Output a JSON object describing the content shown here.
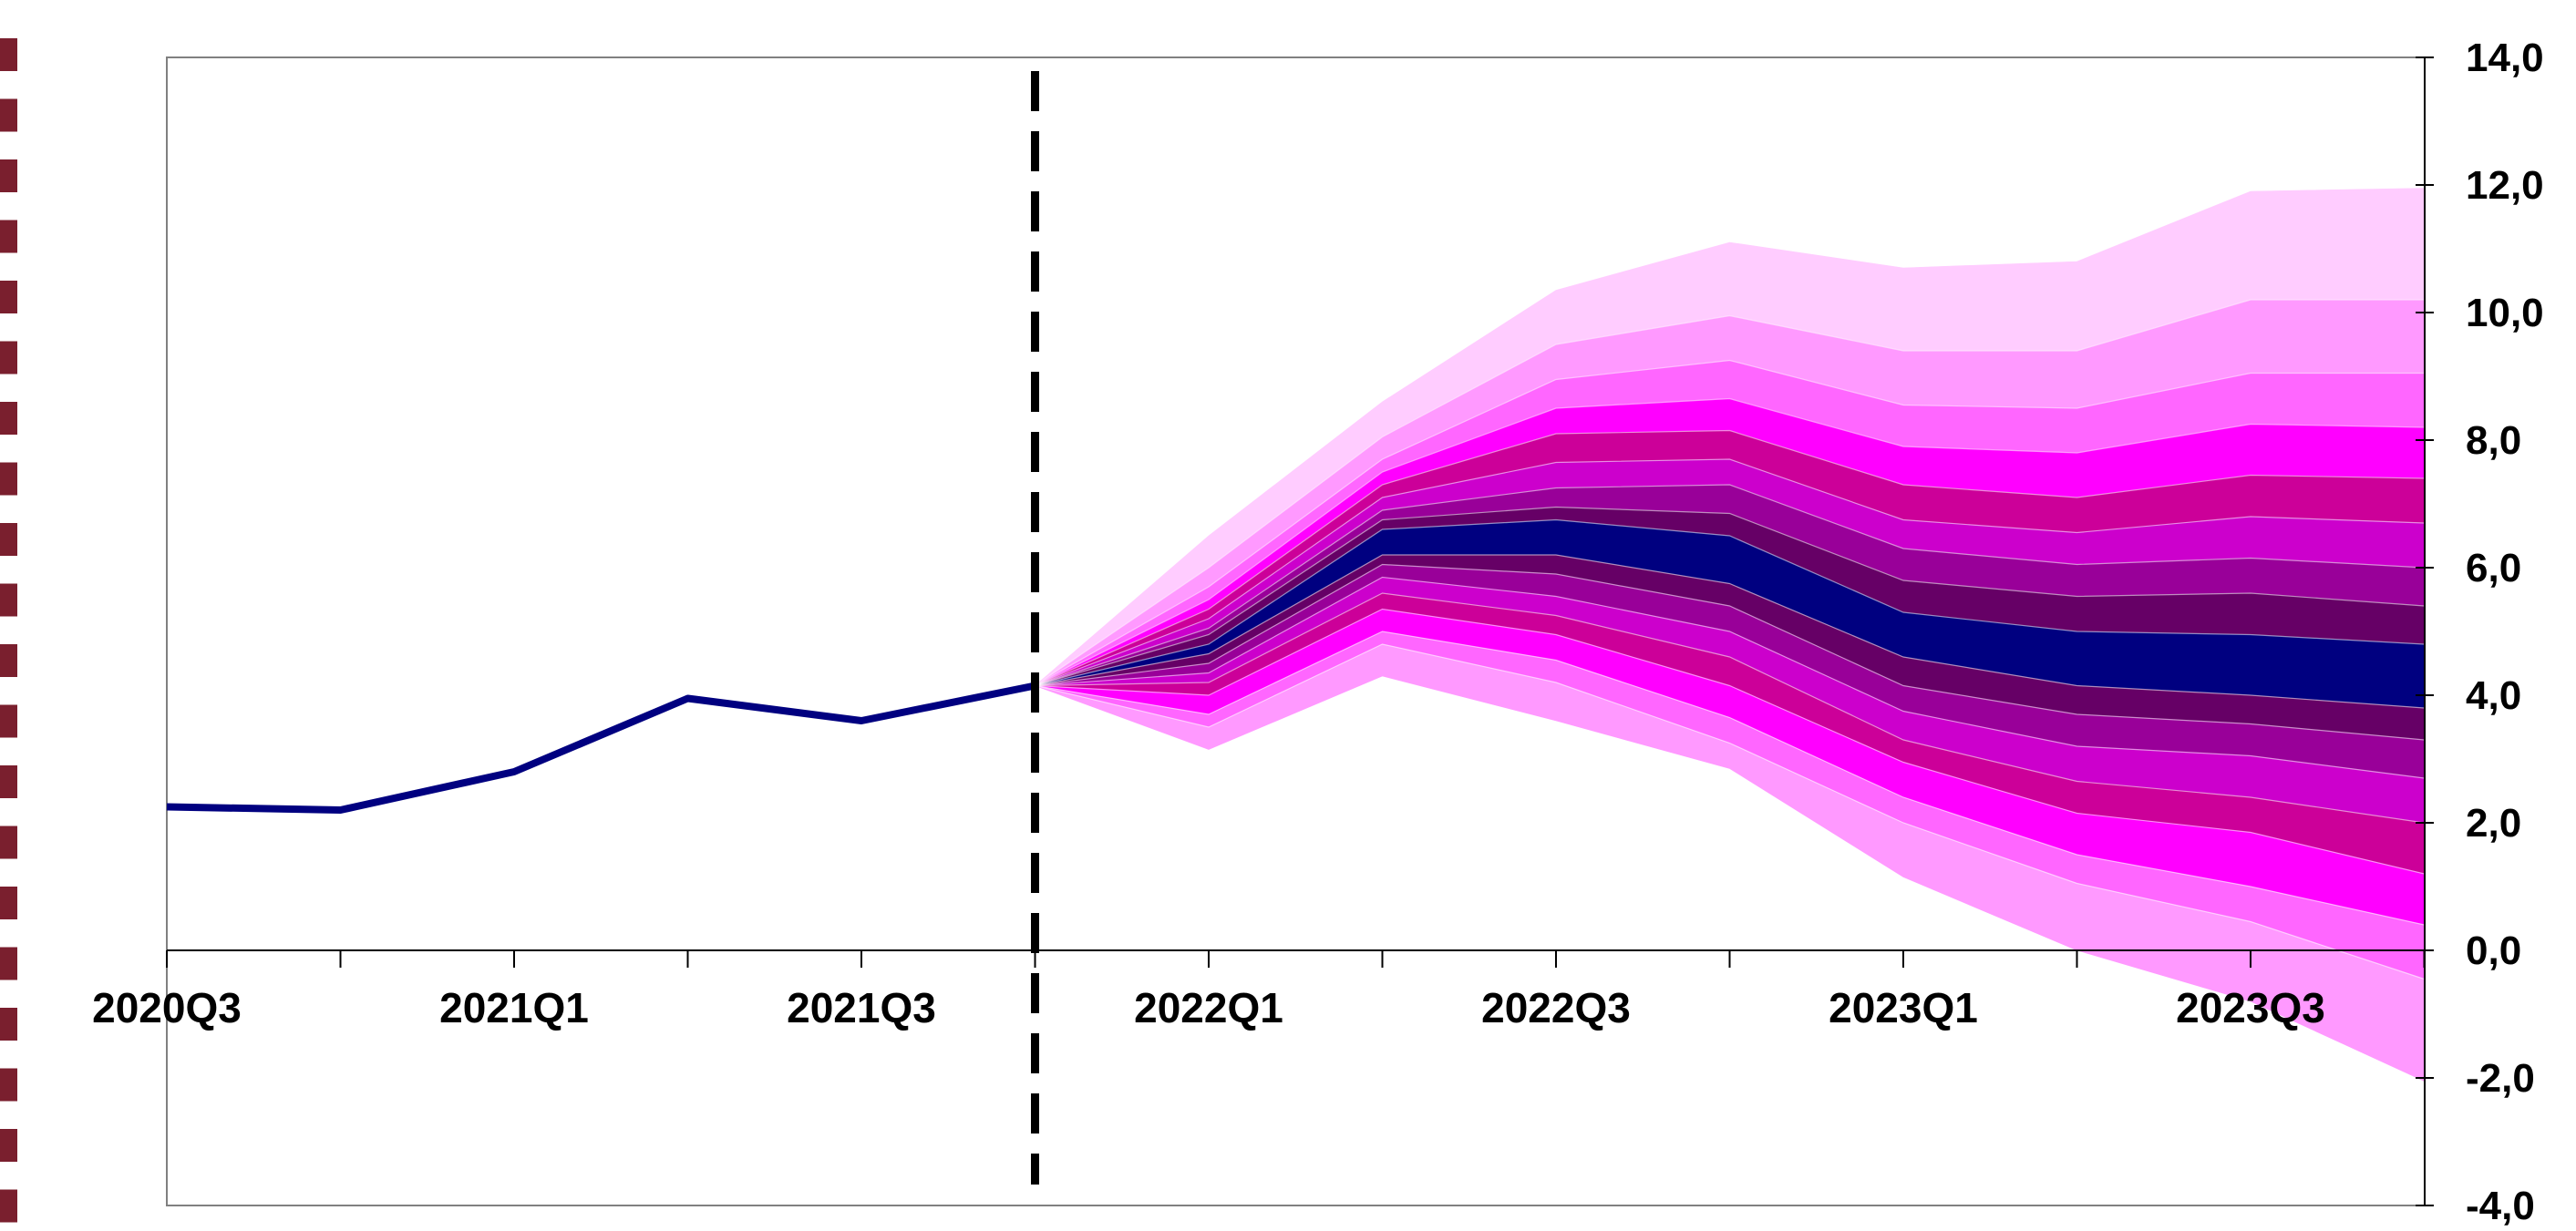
{
  "chart_data": {
    "type": "area",
    "title": "",
    "xlabel": "",
    "ylabel": "",
    "categories": [
      "2020Q3",
      "2020Q4",
      "2021Q1",
      "2021Q2",
      "2021Q3",
      "2021Q4",
      "2022Q1",
      "2022Q2",
      "2022Q3",
      "2022Q4",
      "2023Q1",
      "2023Q2",
      "2023Q3",
      "2023Q4"
    ],
    "x_tick_labels": [
      "2020Q3",
      "2021Q1",
      "2021Q3",
      "2022Q1",
      "2022Q3",
      "2023Q1",
      "2023Q3"
    ],
    "y_tick_labels": [
      "14,0",
      "12,0",
      "10,0",
      "8,0",
      "6,0",
      "4,0",
      "2,0",
      "0,0",
      "-2,0",
      "-4,0"
    ],
    "ylim": [
      -4,
      14
    ],
    "y_axis_position": "right",
    "grid": false,
    "forecast_start": "2021Q4",
    "forecast_divider": "dashed vertical line at 2021Q4",
    "series": [
      {
        "kind": "actual",
        "color": "#000080",
        "values": [
          2.25,
          2.2,
          2.8,
          3.95,
          3.6,
          4.15,
          null,
          null,
          null,
          null,
          null,
          null,
          null,
          null
        ]
      }
    ],
    "fan": {
      "start_value": 4.15,
      "forecast_periods": [
        "2022Q1",
        "2022Q2",
        "2022Q3",
        "2022Q4",
        "2023Q1",
        "2023Q2",
        "2023Q3",
        "2023Q4"
      ],
      "bounds": [
        [
          6.5,
          8.6,
          10.35,
          11.1,
          10.7,
          10.8,
          11.9,
          11.95
        ],
        [
          6.0,
          8.05,
          9.5,
          9.95,
          9.4,
          9.4,
          10.2,
          10.2
        ],
        [
          5.7,
          7.7,
          8.95,
          9.25,
          8.55,
          8.5,
          9.05,
          9.05
        ],
        [
          5.5,
          7.5,
          8.5,
          8.65,
          7.9,
          7.8,
          8.25,
          8.2
        ],
        [
          5.35,
          7.3,
          8.1,
          8.15,
          7.3,
          7.1,
          7.45,
          7.4
        ],
        [
          5.2,
          7.1,
          7.65,
          7.7,
          6.75,
          6.55,
          6.8,
          6.7
        ],
        [
          5.05,
          6.9,
          7.25,
          7.3,
          6.3,
          6.05,
          6.15,
          6.0
        ],
        [
          4.95,
          6.75,
          6.95,
          6.85,
          5.8,
          5.55,
          5.6,
          5.4
        ],
        [
          4.8,
          6.6,
          6.75,
          6.5,
          5.3,
          5.0,
          4.95,
          4.8
        ],
        [
          4.65,
          6.2,
          6.2,
          5.75,
          4.6,
          4.15,
          4.0,
          3.8
        ],
        [
          4.5,
          6.05,
          5.9,
          5.4,
          4.15,
          3.7,
          3.55,
          3.3
        ],
        [
          4.35,
          5.85,
          5.55,
          5.0,
          3.75,
          3.2,
          3.05,
          2.7
        ],
        [
          4.2,
          5.6,
          5.25,
          4.6,
          3.3,
          2.65,
          2.4,
          2.0
        ],
        [
          4.0,
          5.35,
          4.95,
          4.15,
          2.95,
          2.15,
          1.85,
          1.2
        ],
        [
          3.7,
          5.0,
          4.55,
          3.65,
          2.4,
          1.5,
          1.0,
          0.4
        ],
        [
          3.5,
          4.8,
          4.2,
          3.25,
          2.0,
          1.05,
          0.45,
          -0.45
        ],
        [
          3.15,
          4.3,
          3.6,
          2.85,
          1.15,
          0.0,
          -0.8,
          -2.05
        ]
      ],
      "band_colors": [
        "#FFCCFF",
        "#FF99FF",
        "#FF66FF",
        "#FF00FF",
        "#CC0099",
        "#CC00CC",
        "#990099",
        "#660066",
        "#000080",
        "#660066",
        "#990099",
        "#CC00CC",
        "#CC0099",
        "#FF00FF",
        "#FF66FF",
        "#FF99FF",
        "#FFCCFF"
      ],
      "band_separator_color": "#FFFFFF"
    }
  },
  "decor": {
    "left_strip_color": "#7A1F2E"
  }
}
